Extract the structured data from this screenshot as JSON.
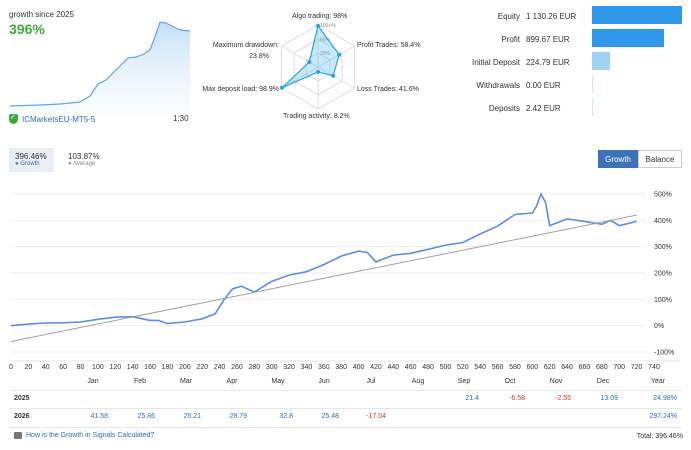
{
  "header": {
    "growth_since": "growth since 2025",
    "growth_value": "396%",
    "broker": "ICMarketsEU-MT5-5",
    "leverage": "1:30"
  },
  "radar": {
    "axes": [
      {
        "label": "Algo trading: 98%",
        "value": 0.98
      },
      {
        "label": "Profit Trades: 58.4%",
        "value": 0.584
      },
      {
        "label": "Loss Trades: 41.6%",
        "value": 0.416
      },
      {
        "label": "Trading activity: 8.2%",
        "value": 0.082
      },
      {
        "label": "Max deposit load: 98.9%",
        "value": 0.989
      },
      {
        "label": "Maximum drawdown:",
        "label2": "23.8%",
        "value": 0.238
      }
    ],
    "ring_labels": [
      "100+%",
      "60%",
      "20%"
    ]
  },
  "stats": [
    {
      "label": "Equity",
      "value": "1 130.26 EUR",
      "fraction": 1.0,
      "color": "#2f98ea"
    },
    {
      "label": "Profit",
      "value": "899.67 EUR",
      "fraction": 0.8,
      "color": "#2f98ea"
    },
    {
      "label": "Initial Deposit",
      "value": "224.79 EUR",
      "fraction": 0.2,
      "color": "#9fd3f3"
    },
    {
      "label": "Withdrawals",
      "value": "0.00 EUR",
      "fraction": 0.0,
      "color": "#cfe8f8"
    },
    {
      "label": "Deposits",
      "value": "2.42 EUR",
      "fraction": 0.005,
      "color": "#cfe8f8"
    }
  ],
  "legend": {
    "growth_value": "396.46%",
    "growth_name": "Growth",
    "average_value": "103.87%",
    "average_name": "Average"
  },
  "toggle": {
    "growth": "Growth",
    "balance": "Balance"
  },
  "chart_data": {
    "type": "line",
    "x_ticks": [
      0,
      20,
      40,
      60,
      80,
      100,
      120,
      140,
      160,
      180,
      200,
      220,
      240,
      260,
      280,
      300,
      320,
      340,
      360,
      380,
      400,
      420,
      440,
      460,
      480,
      500,
      520,
      540,
      560,
      580,
      600,
      620,
      640,
      660,
      680,
      700,
      720,
      740
    ],
    "y_ticks": [
      "500%",
      "400%",
      "300%",
      "200%",
      "100%",
      "0%",
      "-100%"
    ],
    "ylim": [
      -100,
      500
    ],
    "xlim": [
      0,
      740
    ],
    "series": [
      {
        "values": [
          [
            0,
            0
          ],
          [
            20,
            6
          ],
          [
            40,
            10
          ],
          [
            60,
            11
          ],
          [
            80,
            14
          ],
          [
            100,
            24
          ],
          [
            120,
            32
          ],
          [
            140,
            34
          ],
          [
            160,
            20
          ],
          [
            170,
            20
          ],
          [
            180,
            8
          ],
          [
            200,
            14
          ],
          [
            220,
            26
          ],
          [
            235,
            45
          ],
          [
            245,
            98
          ],
          [
            255,
            140
          ],
          [
            265,
            150
          ],
          [
            280,
            128
          ],
          [
            300,
            168
          ],
          [
            320,
            192
          ],
          [
            340,
            205
          ],
          [
            360,
            232
          ],
          [
            380,
            264
          ],
          [
            400,
            283
          ],
          [
            410,
            278
          ],
          [
            420,
            242
          ],
          [
            440,
            268
          ],
          [
            460,
            275
          ],
          [
            480,
            290
          ],
          [
            500,
            306
          ],
          [
            520,
            316
          ],
          [
            540,
            348
          ],
          [
            560,
            378
          ],
          [
            580,
            422
          ],
          [
            600,
            428
          ],
          [
            605,
            455
          ],
          [
            610,
            500
          ],
          [
            615,
            470
          ],
          [
            620,
            380
          ],
          [
            640,
            405
          ],
          [
            660,
            396
          ],
          [
            680,
            385
          ],
          [
            690,
            400
          ],
          [
            700,
            380
          ],
          [
            720,
            396
          ]
        ],
        "color": "#5a8ee0"
      },
      {
        "values": [
          [
            0,
            -60
          ],
          [
            720,
            420
          ]
        ],
        "color": "#a0a0a0"
      }
    ]
  },
  "months": [
    "Jan",
    "Feb",
    "Mar",
    "Apr",
    "May",
    "Jun",
    "Jul",
    "Aug",
    "Sep",
    "Oct",
    "Nov",
    "Dec",
    "Year"
  ],
  "years": [
    {
      "year": "2025",
      "cells": [
        "",
        "",
        "",
        "",
        "",
        "",
        "",
        "",
        "21.4",
        "-6.58",
        "-2.55",
        "13.09",
        "24.98%"
      ]
    },
    {
      "year": "2026",
      "cells": [
        "41.58",
        "25.86",
        "25.21",
        "28.79",
        "32.8",
        "25.48",
        "-17.04",
        "",
        "",
        "",
        "",
        "",
        "297.24%"
      ]
    }
  ],
  "footer": {
    "link": "How is the Growth in Signals Calculated?",
    "total": "Total: 396.46%"
  }
}
